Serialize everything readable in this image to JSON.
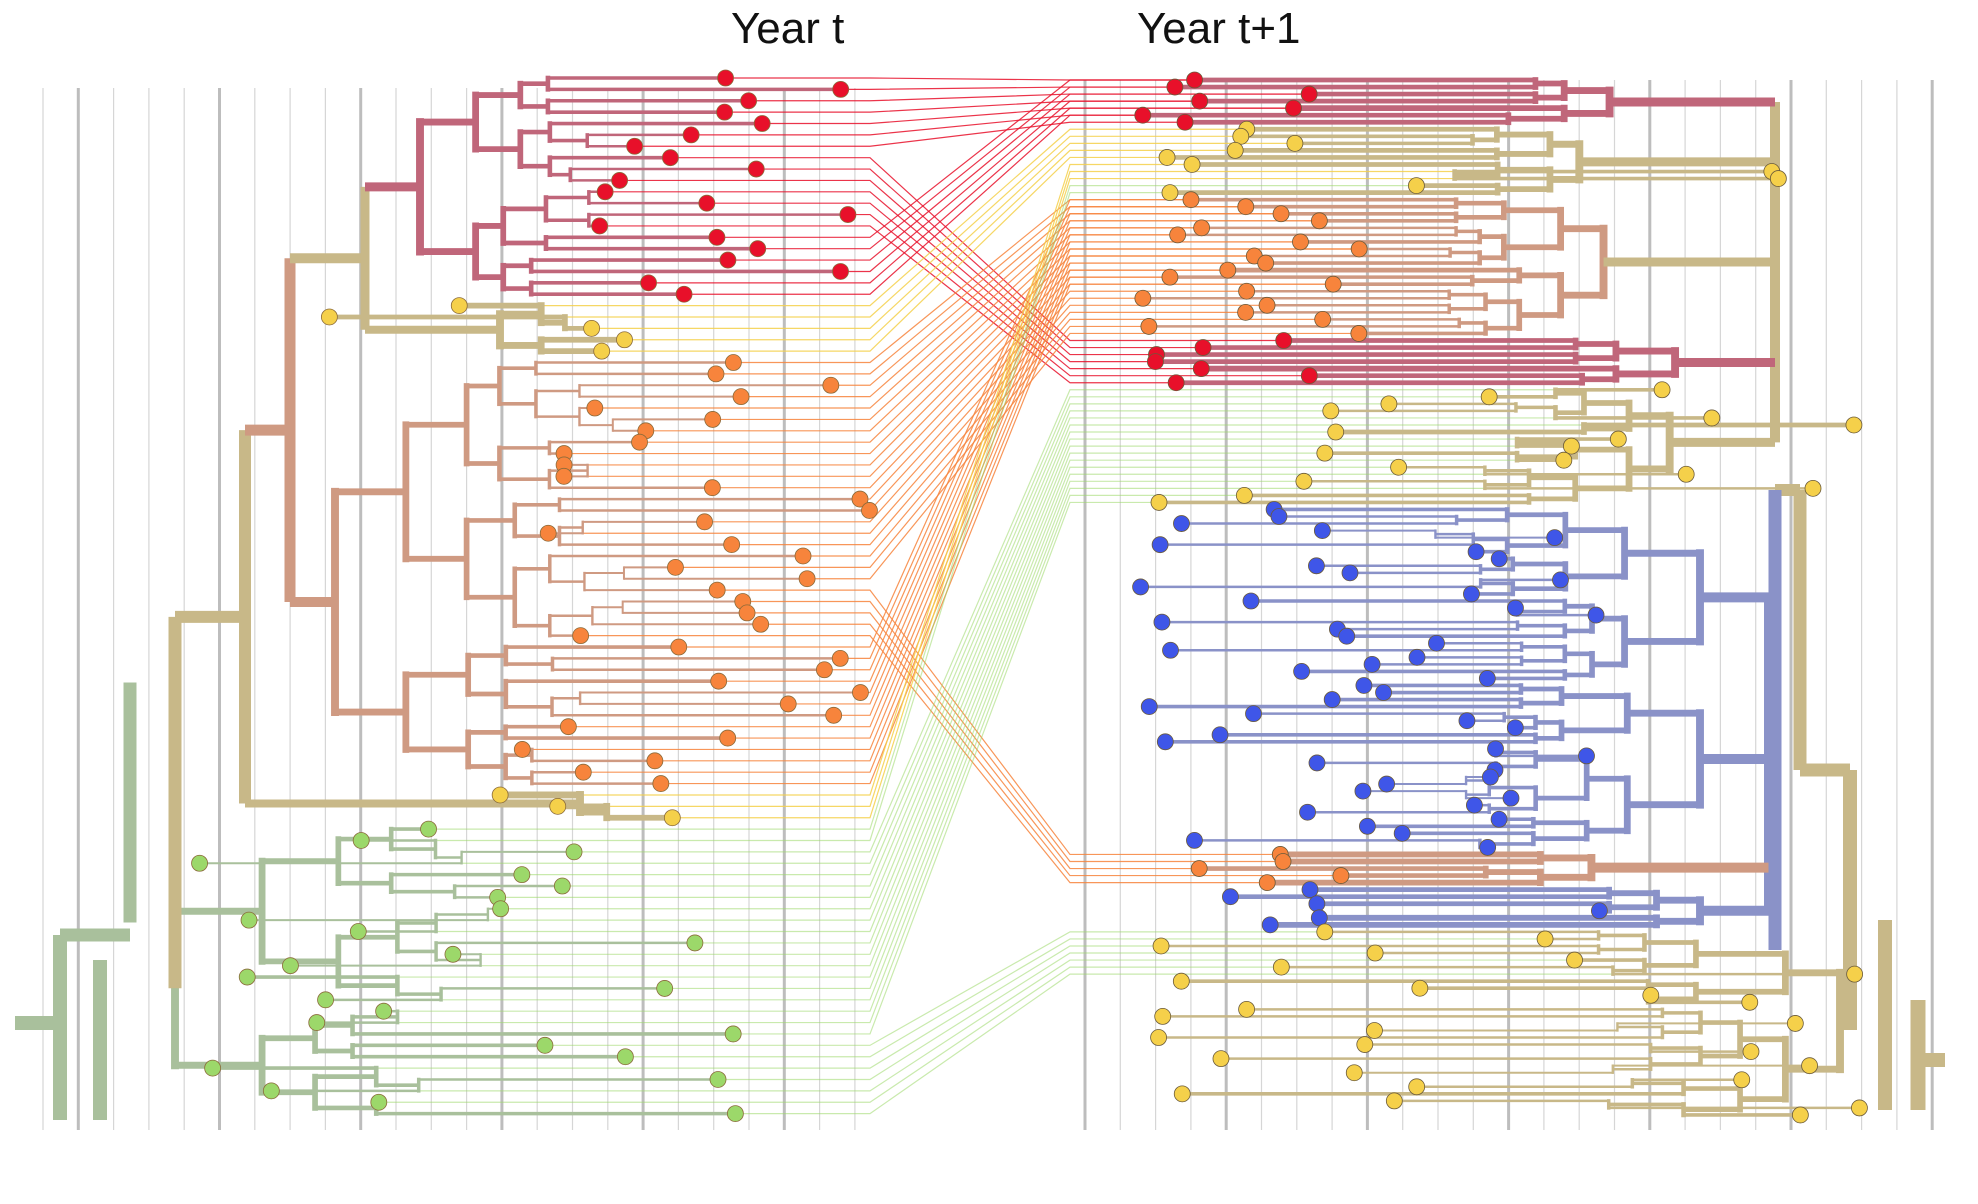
{
  "titles": {
    "left": "Year t",
    "right": "Year t+1"
  },
  "colors": {
    "red_clade": "#e8102a",
    "orange_clade": "#f7843c",
    "yellow_clade": "#f5d04a",
    "green_clade": "#9cd86a",
    "blue_clade": "#3f56e8",
    "red_branch": "#c0667a",
    "orange_branch": "#cf9a82",
    "tan_branch": "#c8b888",
    "green_branch": "#a9c09c",
    "blue_branch": "#8a92c8",
    "gridline": "#d6d6d6"
  },
  "trees": {
    "left": {
      "clades": [
        {
          "name": "red",
          "tips": 20
        },
        {
          "name": "yellow",
          "tips": 5
        },
        {
          "name": "orange",
          "tips": 38
        },
        {
          "name": "yellow",
          "tips": 3
        },
        {
          "name": "green",
          "tips": 26
        }
      ]
    },
    "right": {
      "clades": [
        {
          "name": "red",
          "tips": 7
        },
        {
          "name": "yellow",
          "tips": 10
        },
        {
          "name": "orange",
          "tips": 20
        },
        {
          "name": "red",
          "tips": 7
        },
        {
          "name": "yellow",
          "tips": 17
        },
        {
          "name": "blue",
          "tips": 25
        },
        {
          "name": "blue",
          "tips": 24
        },
        {
          "name": "orange",
          "tips": 5
        },
        {
          "name": "blue",
          "tips": 6
        },
        {
          "name": "yellow",
          "tips": 27
        }
      ]
    }
  }
}
